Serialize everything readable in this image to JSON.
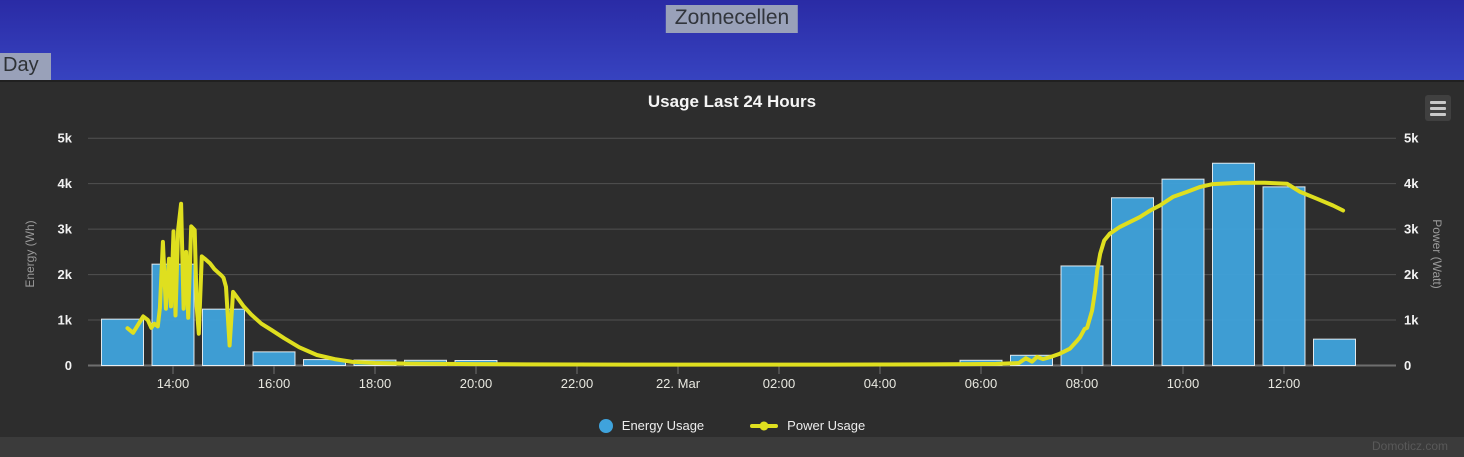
{
  "header": {
    "title": "Zonnecellen",
    "tab_day": "Day"
  },
  "chart": {
    "title": "Usage Last 24 Hours",
    "watermark": "Domoticz.com",
    "legend": [
      {
        "label": "Energy Usage",
        "marker": "circle",
        "color": "#3FA3DC"
      },
      {
        "label": "Power Usage",
        "marker": "line-dot",
        "color": "#DFDF1F"
      }
    ]
  },
  "colors": {
    "header_gradient_top": "#2A2BA5",
    "header_gradient_bottom": "#3743C0",
    "panel_bg": "#2D2D2D",
    "footer_bg": "#3B3B3B",
    "gridline": "#515151",
    "axis_line": "#6E6E6E",
    "bar_fill": "#3FA3DC",
    "line_stroke": "#DFDF1F",
    "selection_highlight": "#99A1B9"
  },
  "chart_data": {
    "type": [
      "bar",
      "line"
    ],
    "title": "Usage Last 24 Hours",
    "ylabel_left": "Energy (Wh)",
    "ylabel_right": "Power (Watt)",
    "ylim": [
      0,
      5000
    ],
    "x_axis_note": "t = hours since 13:00 of first day",
    "yticks": [
      {
        "v": 0,
        "label": "0"
      },
      {
        "v": 1000,
        "label": "1k"
      },
      {
        "v": 2000,
        "label": "2k"
      },
      {
        "v": 3000,
        "label": "3k"
      },
      {
        "v": 4000,
        "label": "4k"
      },
      {
        "v": 5000,
        "label": "5k"
      }
    ],
    "xticks": [
      {
        "t": 1,
        "label": "14:00"
      },
      {
        "t": 3,
        "label": "16:00"
      },
      {
        "t": 5,
        "label": "18:00"
      },
      {
        "t": 7,
        "label": "20:00"
      },
      {
        "t": 9,
        "label": "22:00"
      },
      {
        "t": 11,
        "label": "22. Mar"
      },
      {
        "t": 13,
        "label": "02:00"
      },
      {
        "t": 15,
        "label": "04:00"
      },
      {
        "t": 17,
        "label": "06:00"
      },
      {
        "t": 19,
        "label": "08:00"
      },
      {
        "t": 21,
        "label": "10:00"
      },
      {
        "t": 23,
        "label": "12:00"
      }
    ],
    "series": [
      {
        "name": "Energy Usage",
        "type": "bar",
        "unit": "Wh",
        "color": "#3FA3DC",
        "points": [
          {
            "t": 0,
            "time": "13:00",
            "wh": 1020
          },
          {
            "t": 1,
            "time": "14:00",
            "wh": 2230
          },
          {
            "t": 2,
            "time": "15:00",
            "wh": 1240
          },
          {
            "t": 3,
            "time": "16:00",
            "wh": 300
          },
          {
            "t": 4,
            "time": "17:00",
            "wh": 130
          },
          {
            "t": 5,
            "time": "18:00",
            "wh": 120
          },
          {
            "t": 6,
            "time": "19:00",
            "wh": 115
          },
          {
            "t": 7,
            "time": "20:00",
            "wh": 110
          },
          {
            "t": 8,
            "time": "21:00",
            "wh": 0
          },
          {
            "t": 9,
            "time": "22:00",
            "wh": 0
          },
          {
            "t": 10,
            "time": "23:00",
            "wh": 0
          },
          {
            "t": 11,
            "time": "00:00",
            "wh": 0
          },
          {
            "t": 12,
            "time": "01:00",
            "wh": 0
          },
          {
            "t": 13,
            "time": "02:00",
            "wh": 0
          },
          {
            "t": 14,
            "time": "03:00",
            "wh": 0
          },
          {
            "t": 15,
            "time": "04:00",
            "wh": 0
          },
          {
            "t": 16,
            "time": "05:00",
            "wh": 0
          },
          {
            "t": 17,
            "time": "06:00",
            "wh": 115
          },
          {
            "t": 18,
            "time": "07:00",
            "wh": 225
          },
          {
            "t": 19,
            "time": "08:00",
            "wh": 2190
          },
          {
            "t": 20,
            "time": "09:00",
            "wh": 3690
          },
          {
            "t": 21,
            "time": "10:00",
            "wh": 4100
          },
          {
            "t": 22,
            "time": "11:00",
            "wh": 4450
          },
          {
            "t": 23,
            "time": "12:00",
            "wh": 3930
          },
          {
            "t": 24,
            "time": "13:00",
            "wh": 580
          }
        ]
      },
      {
        "name": "Power Usage",
        "type": "line",
        "unit": "Watt",
        "color": "#DFDF1F",
        "points": [
          [
            0.1,
            820
          ],
          [
            0.21,
            720
          ],
          [
            0.31,
            900
          ],
          [
            0.41,
            1080
          ],
          [
            0.5,
            1000
          ],
          [
            0.57,
            830
          ],
          [
            0.63,
            920
          ],
          [
            0.7,
            860
          ],
          [
            0.74,
            1270
          ],
          [
            0.8,
            2720
          ],
          [
            0.86,
            1250
          ],
          [
            0.92,
            2350
          ],
          [
            0.96,
            1300
          ],
          [
            1.01,
            2950
          ],
          [
            1.05,
            1100
          ],
          [
            1.1,
            2980
          ],
          [
            1.16,
            3560
          ],
          [
            1.21,
            1250
          ],
          [
            1.26,
            2500
          ],
          [
            1.3,
            1050
          ],
          [
            1.36,
            3060
          ],
          [
            1.43,
            2980
          ],
          [
            1.47,
            1300
          ],
          [
            1.51,
            700
          ],
          [
            1.57,
            2400
          ],
          [
            1.65,
            2330
          ],
          [
            1.73,
            2250
          ],
          [
            1.82,
            2120
          ],
          [
            1.89,
            2050
          ],
          [
            1.96,
            1980
          ],
          [
            2.0,
            1930
          ],
          [
            2.05,
            1730
          ],
          [
            2.12,
            440
          ],
          [
            2.19,
            1620
          ],
          [
            2.27,
            1500
          ],
          [
            2.4,
            1300
          ],
          [
            2.55,
            1120
          ],
          [
            2.75,
            920
          ],
          [
            2.95,
            780
          ],
          [
            3.2,
            600
          ],
          [
            3.5,
            400
          ],
          [
            3.85,
            230
          ],
          [
            4.2,
            140
          ],
          [
            4.55,
            80
          ],
          [
            5.0,
            55
          ],
          [
            5.5,
            45
          ],
          [
            6.0,
            40
          ],
          [
            7.0,
            30
          ],
          [
            8.0,
            25
          ],
          [
            9.0,
            22
          ],
          [
            10.0,
            20
          ],
          [
            11.0,
            20
          ],
          [
            12.0,
            20
          ],
          [
            13.0,
            20
          ],
          [
            14.0,
            20
          ],
          [
            15.0,
            22
          ],
          [
            16.0,
            25
          ],
          [
            16.8,
            30
          ],
          [
            17.3,
            35
          ],
          [
            17.75,
            55
          ],
          [
            17.89,
            160
          ],
          [
            18.01,
            85
          ],
          [
            18.11,
            190
          ],
          [
            18.23,
            140
          ],
          [
            18.37,
            185
          ],
          [
            18.56,
            260
          ],
          [
            18.76,
            370
          ],
          [
            18.9,
            540
          ],
          [
            18.96,
            620
          ],
          [
            19.05,
            800
          ],
          [
            19.1,
            830
          ],
          [
            19.2,
            1210
          ],
          [
            19.26,
            1650
          ],
          [
            19.3,
            2090
          ],
          [
            19.36,
            2460
          ],
          [
            19.44,
            2750
          ],
          [
            19.55,
            2900
          ],
          [
            19.75,
            3050
          ],
          [
            19.95,
            3160
          ],
          [
            20.15,
            3270
          ],
          [
            20.35,
            3410
          ],
          [
            20.54,
            3520
          ],
          [
            20.8,
            3710
          ],
          [
            21.08,
            3820
          ],
          [
            21.34,
            3930
          ],
          [
            21.59,
            3990
          ],
          [
            22.13,
            4020
          ],
          [
            22.62,
            4020
          ],
          [
            23.06,
            4000
          ],
          [
            23.32,
            3820
          ],
          [
            23.65,
            3670
          ],
          [
            23.97,
            3520
          ],
          [
            24.17,
            3410
          ]
        ]
      }
    ]
  }
}
